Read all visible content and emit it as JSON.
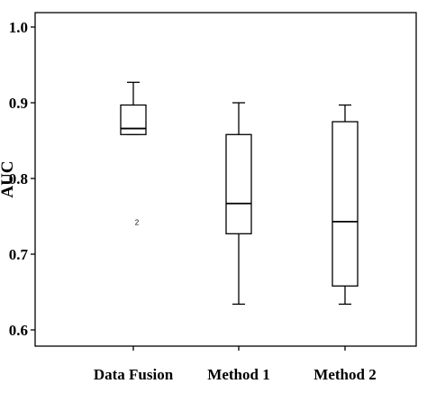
{
  "chart_data": {
    "type": "box",
    "title": "",
    "xlabel": "",
    "ylabel": "AUC",
    "ylim": [
      0.58,
      1.02
    ],
    "yticks": [
      0.6,
      0.7,
      0.8,
      0.9,
      1.0
    ],
    "ytick_labels": [
      "0.6",
      "0.7",
      "0.8",
      "0.9",
      "1.0"
    ],
    "grid": false,
    "categories": [
      "Data Fusion",
      "Method 1",
      "Method 2"
    ],
    "boxes": [
      {
        "category": "Data Fusion",
        "whisker_low": 0.858,
        "q1": 0.858,
        "median": 0.866,
        "q3": 0.897,
        "whisker_high": 0.927
      },
      {
        "category": "Method 1",
        "whisker_low": 0.634,
        "q1": 0.727,
        "median": 0.767,
        "q3": 0.858,
        "whisker_high": 0.9
      },
      {
        "category": "Method 2",
        "whisker_low": 0.634,
        "q1": 0.658,
        "median": 0.743,
        "q3": 0.875,
        "whisker_high": 0.897
      }
    ],
    "outliers": [
      {
        "category": "Data Fusion",
        "value": 0.742,
        "label": "2"
      }
    ]
  }
}
